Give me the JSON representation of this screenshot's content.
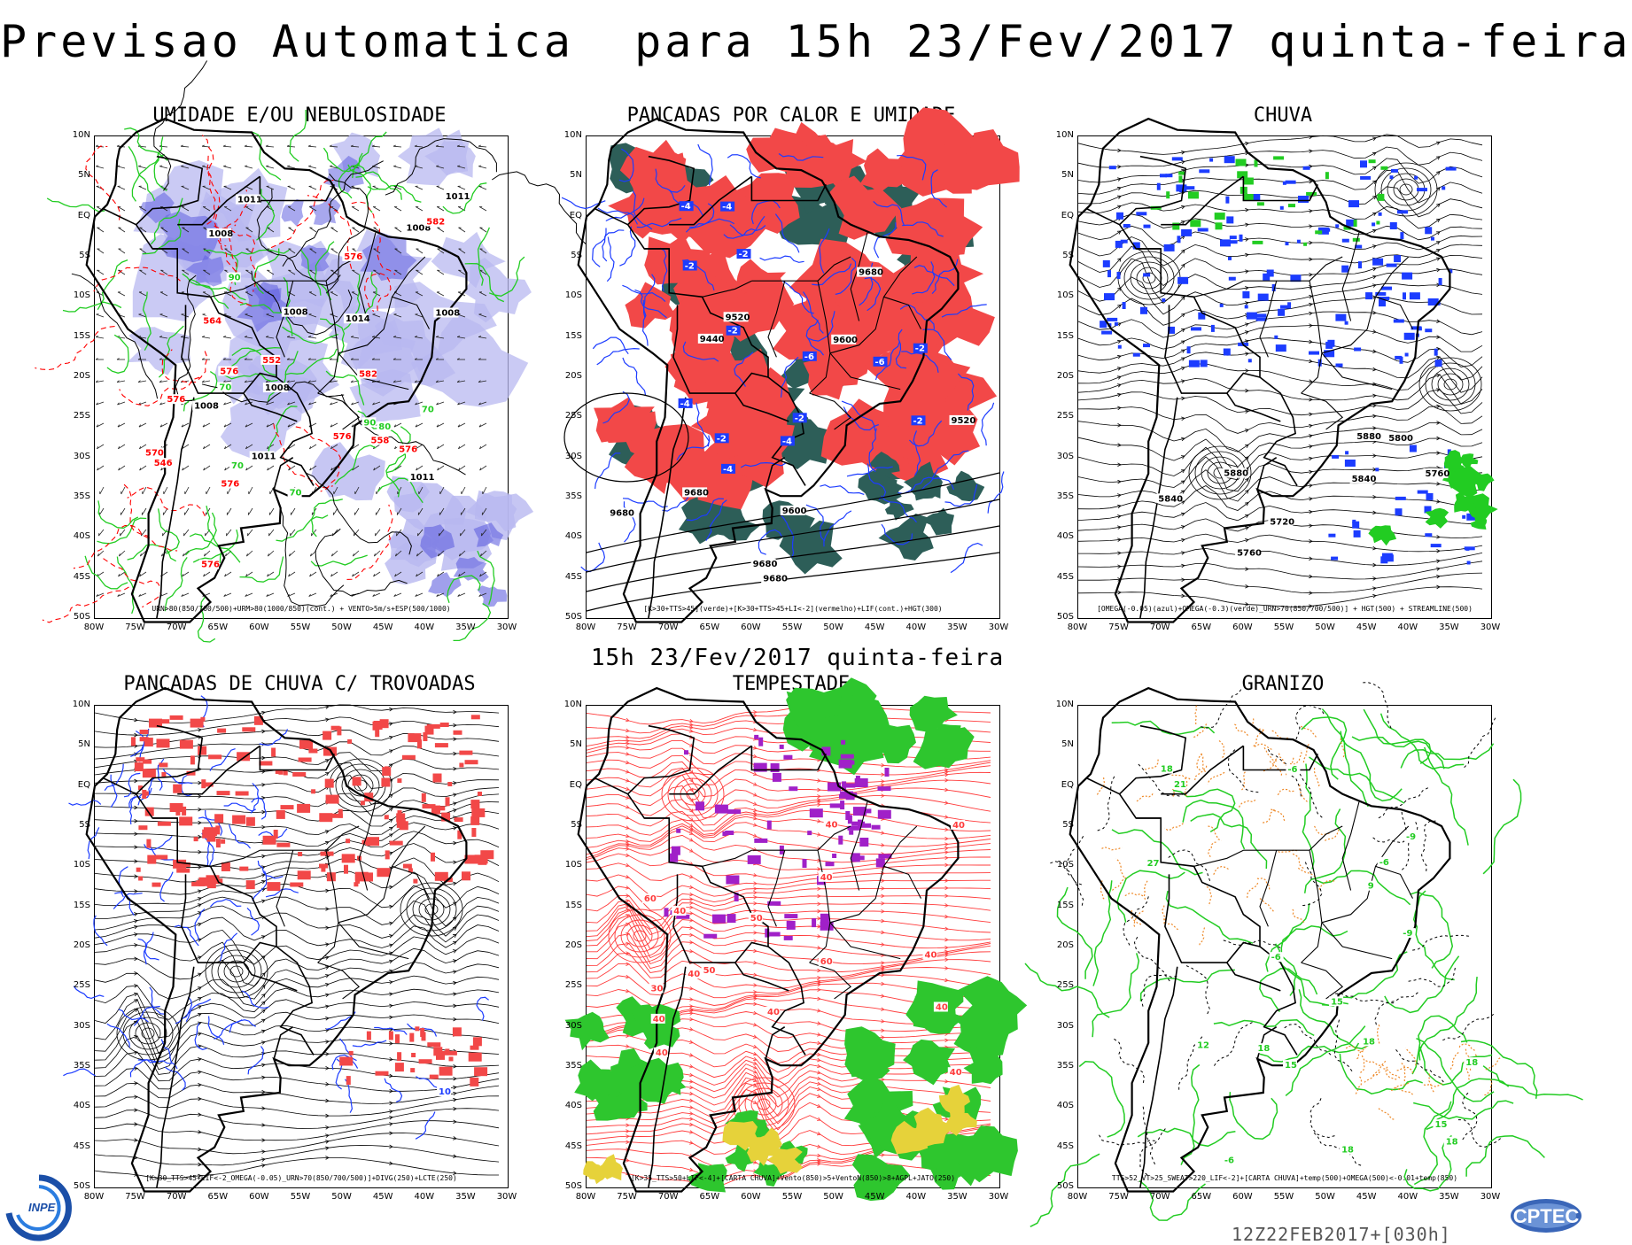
{
  "title": "Previsao Automatica  para 15h 23/Fev/2017 quinta-feira",
  "middle_time": "15h 23/Fev/2017 quinta-feira",
  "run_label": "12Z22FEB2017+[030h]",
  "y_ticks": [
    "10N",
    "5N",
    "EQ",
    "5S",
    "10S",
    "15S",
    "20S",
    "25S",
    "30S",
    "35S",
    "40S",
    "45S",
    "50S"
  ],
  "x_ticks": [
    "80W",
    "75W",
    "70W",
    "65W",
    "60W",
    "55W",
    "50W",
    "45W",
    "40W",
    "35W",
    "30W"
  ],
  "logos": {
    "left": "INPE",
    "right": "CPTEC"
  },
  "panels": [
    {
      "title": "UMIDADE E/OU NEBULOSIDADE",
      "legend": "URN>80(850/700/500)+URM>80(1000/850)(cont.) + VENTO>5m/s+ESP(500/1000)",
      "labels": [
        "1011",
        "1008",
        "1008",
        "1011",
        "1008",
        "1008",
        "1014",
        "1011",
        "1008",
        "1011",
        "1008",
        "576",
        "576",
        "576",
        "576",
        "576",
        "576",
        "576",
        "582",
        "582",
        "570",
        "564",
        "558",
        "552",
        "546",
        "70",
        "70",
        "70",
        "70",
        "90",
        "90",
        "80"
      ]
    },
    {
      "title": "PANCADAS POR CALOR E UMIDADE",
      "legend": "[K>30+TTS>45](verde)+[K>30+TTS>45+LI<-2](vermelho)+LIF(cont.)+HGT(300)",
      "labels": [
        "9680",
        "9680",
        "9680",
        "9680",
        "9680",
        "9600",
        "9520",
        "9440",
        "9600",
        "9520",
        "-2",
        "-4",
        "-2",
        "-4",
        "-2",
        "-4",
        "-6",
        "-2",
        "-4",
        "-2",
        "-6",
        "-2",
        "-4",
        "-2"
      ]
    },
    {
      "title": "CHUVA",
      "legend": "[OMEGA(-0.05)(azul)+OMEGA(-0.3)(verde)_URN>70(850/700/500)] + HGT(500) + STREAMLINE(500)",
      "labels": [
        "5880",
        "5840",
        "5880",
        "5840",
        "5800",
        "5760",
        "5720",
        "5760"
      ]
    },
    {
      "title": "PANCADAS DE CHUVA C/ TROVOADAS",
      "legend": "[K>30_TTS>45+LIF<-2_OMEGA(-0.05)_URN>70(850/700/500)]+DIVG(250)+LCTE(250)",
      "labels": [
        "10"
      ]
    },
    {
      "title": "TEMPESTADE",
      "legend": "[K>35_TTS>50+LIF<-4]+[CARTA CHUVA]+Vento(850)>5+VentoN(850)>8+AGPL+JATO(250)",
      "labels": [
        "40",
        "60",
        "40",
        "40",
        "50",
        "40",
        "30",
        "40",
        "40",
        "60",
        "40",
        "50",
        "40",
        "40",
        "40",
        "40"
      ]
    },
    {
      "title": "GRANIZO",
      "legend": "TTS>52_VT>25_SWEAT>220_LIF<-2]+[CARTA CHUVA]+temp(500)+OMEGA(500)<-0.01+temp(850)",
      "labels": [
        "18",
        "18",
        "-6",
        "-6",
        "18",
        "18",
        "15",
        "21",
        "15",
        "18",
        "-6",
        "-6",
        "27",
        "-9",
        "-9",
        "12",
        "15",
        "18",
        "9"
      ]
    }
  ],
  "colors": {
    "humidity": "#b8b8f0",
    "humidity_dark": "#6060e0",
    "green_contour": "#22cc22",
    "red_dashed": "#ff0000",
    "pancada_red": "#f24848",
    "pancada_green": "#2d5e58",
    "blue_contour": "#1c3cff",
    "rain_blue": "#1c3cff",
    "rain_green": "#22cc22",
    "storm_red": "#ff3b3b",
    "storm_green": "#2ec62e",
    "storm_purple": "#a020c8",
    "storm_yellow": "#e6d23a",
    "hail_orange": "#ee8a2a"
  }
}
